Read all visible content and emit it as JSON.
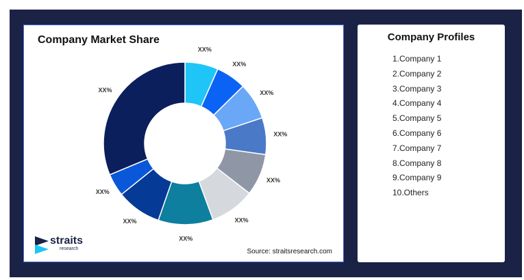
{
  "chart_data": {
    "type": "pie",
    "title": "Company Market Share",
    "categories": [
      "Company 1",
      "Company 2",
      "Company 3",
      "Company 4",
      "Company 5",
      "Company 6",
      "Company 7",
      "Company 8",
      "Company 9",
      "Others"
    ],
    "values": [
      6.6,
      6.0,
      7.3,
      7.3,
      8.3,
      8.9,
      10.9,
      8.9,
      4.5,
      31.3
    ],
    "value_labels": [
      "XX%",
      "XX%",
      "XX%",
      "XX%",
      "XX%",
      "XX%",
      "XX%",
      "XX%",
      "XX%",
      "XX%"
    ],
    "colors": [
      "#1fc5f7",
      "#0b63f6",
      "#6aa7f7",
      "#4a79c8",
      "#8f97a6",
      "#d5d8dd",
      "#0e7f9e",
      "#053a96",
      "#0a57d9",
      "#0b1f5c"
    ],
    "donut": true
  },
  "source": "Source: straitsresearch.com",
  "logo": {
    "word": "straits",
    "sub": "research"
  },
  "profiles": {
    "title": "Company Profiles",
    "items": [
      "1.Company 1",
      "2.Company 2",
      "3.Company 3",
      "4.Company 4",
      "5.Company 5",
      "6.Company 6",
      "7.Company 7",
      "8.Company 8",
      "9.Company 9",
      "10.Others"
    ]
  }
}
